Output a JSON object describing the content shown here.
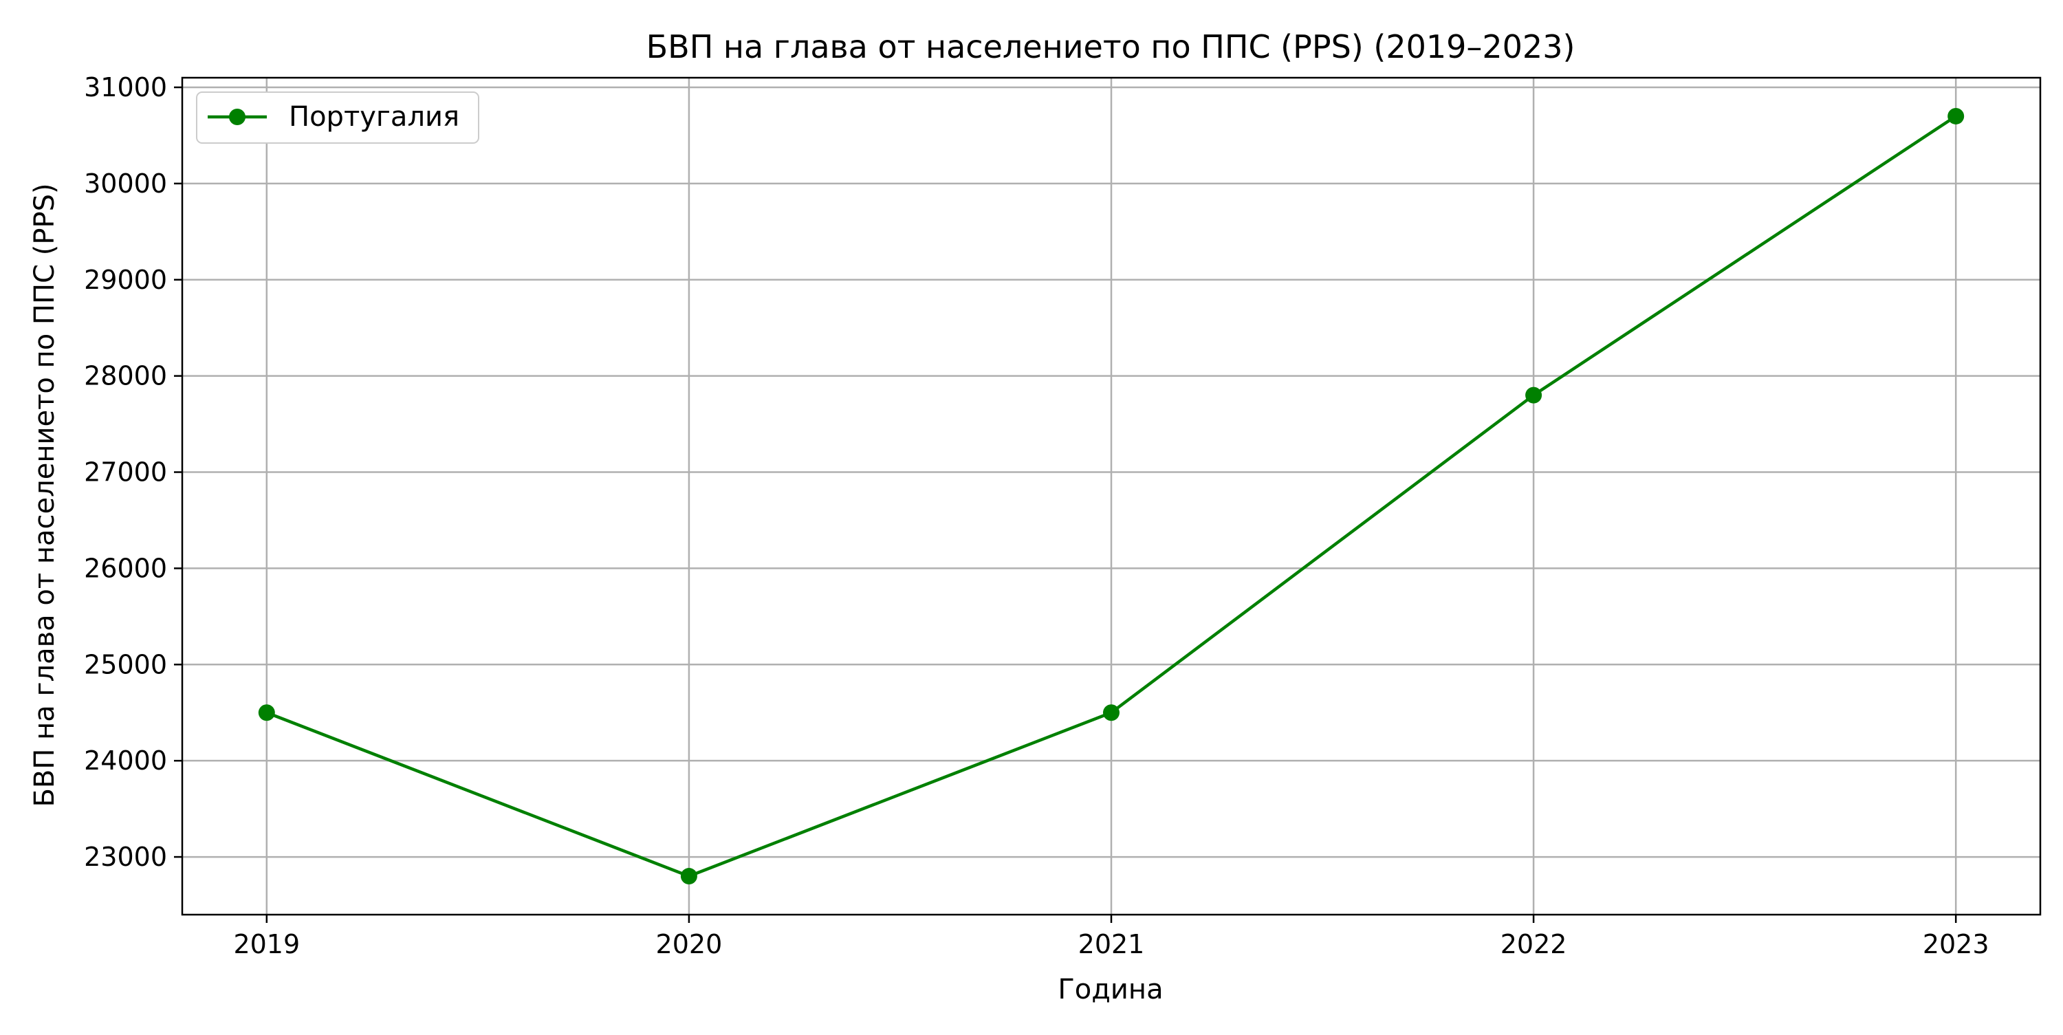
{
  "chart_data": {
    "type": "line",
    "title": "БВП на глава от населението по ППС (PPS) (2019–2023)",
    "xlabel": "Година",
    "ylabel": "БВП на глава от населението по ППС (PPS)",
    "x": [
      "2019",
      "2020",
      "2021",
      "2022",
      "2023"
    ],
    "series": [
      {
        "name": "Португалия",
        "color": "#008000",
        "marker": "circle",
        "values": [
          24500,
          22800,
          24500,
          27800,
          30700
        ]
      }
    ],
    "yticks": [
      "23000",
      "24000",
      "25000",
      "26000",
      "27000",
      "28000",
      "29000",
      "30000",
      "31000"
    ],
    "ylim": [
      22400,
      31100
    ],
    "grid": true,
    "legend_position": "top-left"
  }
}
